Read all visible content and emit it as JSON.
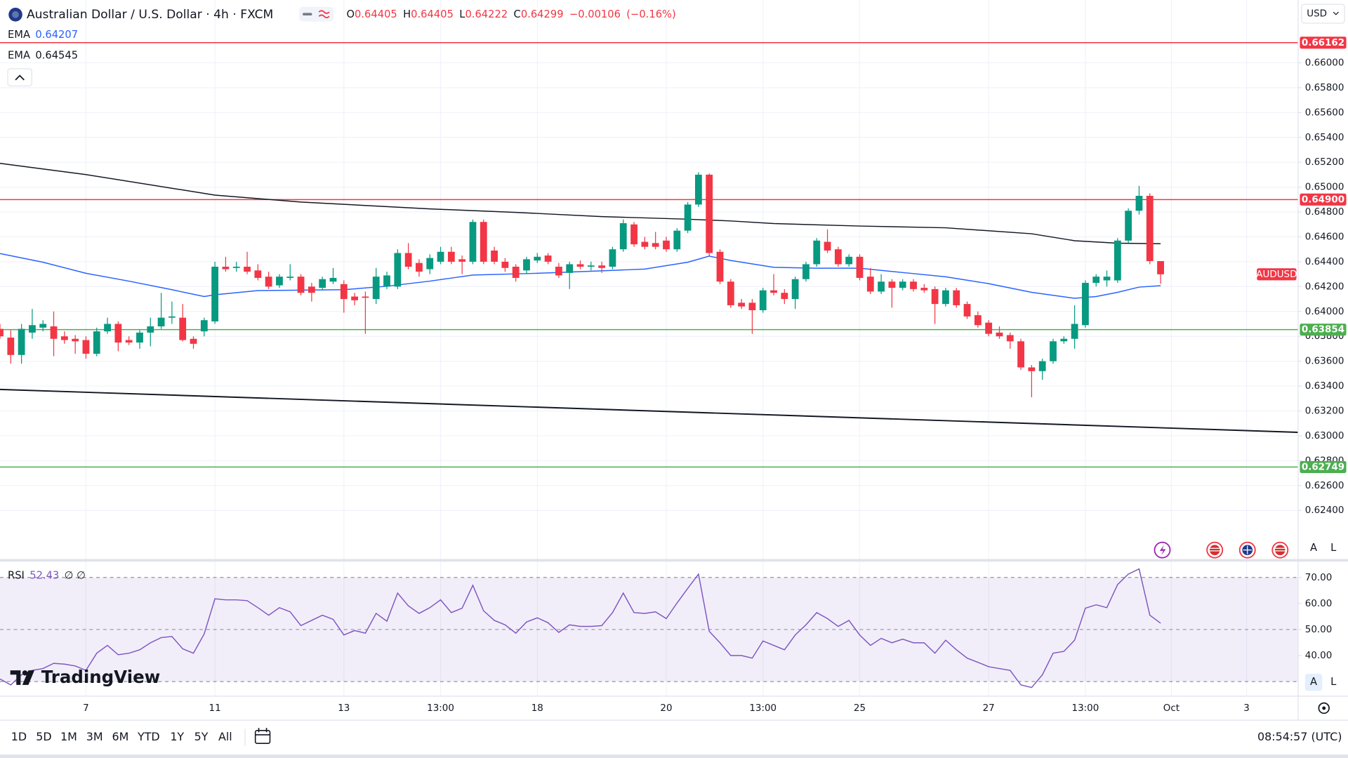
{
  "header": {
    "title": "Australian Dollar / U.S. Dollar · 4h · FXCM",
    "ohlc": [
      {
        "prefix": "O",
        "value": 0.64405
      },
      {
        "prefix": "H",
        "value": 0.64405
      },
      {
        "prefix": "L",
        "value": 0.64222
      },
      {
        "prefix": "C",
        "value": 0.64299
      }
    ],
    "change": {
      "value": -0.00106,
      "label": "−0.00106"
    },
    "change_pct": {
      "value": -0.16,
      "label": "(−0.16%)"
    }
  },
  "currency": "USD",
  "brand": "TradingView",
  "scale_buttons": [
    "A",
    "L"
  ],
  "toolbar": {
    "ranges": [
      "1D",
      "5D",
      "1M",
      "3M",
      "6M",
      "YTD",
      "1Y",
      "5Y",
      "All"
    ],
    "clock": "08:54:57 (UTC)"
  },
  "chart_data": {
    "type": "candlestick",
    "symbol": "AUDUSD",
    "up_color": "#089981",
    "down_color": "#f23645",
    "grid": true,
    "xlim": [
      0,
      120.8
    ],
    "ylim": [
      0.62185,
      0.66505
    ],
    "yticks": [
      {
        "value": 0.66,
        "label": "0.66000"
      },
      {
        "value": 0.658,
        "label": "0.65800"
      },
      {
        "value": 0.656,
        "label": "0.65600"
      },
      {
        "value": 0.654,
        "label": "0.65400"
      },
      {
        "value": 0.652,
        "label": "0.65200"
      },
      {
        "value": 0.65,
        "label": "0.65000"
      },
      {
        "value": 0.648,
        "label": "0.64800"
      },
      {
        "value": 0.646,
        "label": "0.64600"
      },
      {
        "value": 0.644,
        "label": "0.64400"
      },
      {
        "value": 0.642,
        "label": "0.64200"
      },
      {
        "value": 0.64,
        "label": "0.64000"
      },
      {
        "value": 0.638,
        "label": "0.63800"
      },
      {
        "value": 0.636,
        "label": "0.63600"
      },
      {
        "value": 0.634,
        "label": "0.63400"
      },
      {
        "value": 0.632,
        "label": "0.63200"
      },
      {
        "value": 0.63,
        "label": "0.63000"
      },
      {
        "value": 0.628,
        "label": "0.62800"
      },
      {
        "value": 0.626,
        "label": "0.62600"
      },
      {
        "value": 0.624,
        "label": "0.62400"
      }
    ],
    "x_labels": [
      "7",
      "11",
      "13",
      "13:00",
      "18",
      "20",
      "13:00",
      "25",
      "27",
      "13:00",
      "Oct",
      "3"
    ],
    "candles": [
      [
        0.6386,
        0.639,
        0.6378,
        0.638
      ],
      [
        0.6379,
        0.6385,
        0.6358,
        0.6365
      ],
      [
        0.6365,
        0.639,
        0.6358,
        0.6386
      ],
      [
        0.6383,
        0.6402,
        0.6378,
        0.6389
      ],
      [
        0.6387,
        0.6393,
        0.6384,
        0.639
      ],
      [
        0.6388,
        0.64,
        0.6364,
        0.6378
      ],
      [
        0.638,
        0.6384,
        0.6374,
        0.6377
      ],
      [
        0.6378,
        0.6381,
        0.6366,
        0.6376
      ],
      [
        0.6377,
        0.638,
        0.6362,
        0.6366
      ],
      [
        0.6366,
        0.6387,
        0.6364,
        0.6384
      ],
      [
        0.6384,
        0.6395,
        0.6382,
        0.639
      ],
      [
        0.639,
        0.6392,
        0.6368,
        0.6375
      ],
      [
        0.6377,
        0.638,
        0.6373,
        0.6375
      ],
      [
        0.6375,
        0.6385,
        0.637,
        0.6383
      ],
      [
        0.6383,
        0.6395,
        0.6372,
        0.6388
      ],
      [
        0.6388,
        0.6415,
        0.6386,
        0.6395
      ],
      [
        0.6395,
        0.6408,
        0.639,
        0.6396
      ],
      [
        0.6395,
        0.6406,
        0.6376,
        0.6377
      ],
      [
        0.6378,
        0.638,
        0.637,
        0.6374
      ],
      [
        0.6384,
        0.6395,
        0.638,
        0.6393
      ],
      [
        0.6392,
        0.644,
        0.639,
        0.6436
      ],
      [
        0.6436,
        0.6444,
        0.6432,
        0.6434
      ],
      [
        0.6435,
        0.644,
        0.6432,
        0.6436
      ],
      [
        0.6436,
        0.6448,
        0.643,
        0.6432
      ],
      [
        0.6433,
        0.6438,
        0.6425,
        0.6427
      ],
      [
        0.6428,
        0.6432,
        0.6418,
        0.642
      ],
      [
        0.6421,
        0.643,
        0.6419,
        0.6428
      ],
      [
        0.6427,
        0.6438,
        0.6425,
        0.6428
      ],
      [
        0.6428,
        0.643,
        0.6413,
        0.6415
      ],
      [
        0.642,
        0.6423,
        0.6408,
        0.6415
      ],
      [
        0.6419,
        0.6428,
        0.6417,
        0.6426
      ],
      [
        0.6424,
        0.6435,
        0.6422,
        0.6427
      ],
      [
        0.6422,
        0.6425,
        0.6399,
        0.641
      ],
      [
        0.6412,
        0.6415,
        0.6405,
        0.6409
      ],
      [
        0.6412,
        0.6416,
        0.6382,
        0.6411
      ],
      [
        0.641,
        0.6435,
        0.6406,
        0.6428
      ],
      [
        0.642,
        0.6432,
        0.6418,
        0.6429
      ],
      [
        0.642,
        0.645,
        0.6418,
        0.6447
      ],
      [
        0.6447,
        0.6455,
        0.6434,
        0.6436
      ],
      [
        0.6439,
        0.6442,
        0.6428,
        0.6432
      ],
      [
        0.6434,
        0.6446,
        0.643,
        0.6443
      ],
      [
        0.644,
        0.6452,
        0.6438,
        0.6448
      ],
      [
        0.6448,
        0.6452,
        0.6438,
        0.644
      ],
      [
        0.6442,
        0.6445,
        0.643,
        0.644
      ],
      [
        0.644,
        0.6474,
        0.6438,
        0.6472
      ],
      [
        0.6472,
        0.6474,
        0.6438,
        0.644
      ],
      [
        0.6449,
        0.6452,
        0.6438,
        0.644
      ],
      [
        0.644,
        0.6443,
        0.6432,
        0.6435
      ],
      [
        0.6436,
        0.6438,
        0.6424,
        0.6427
      ],
      [
        0.6433,
        0.6444,
        0.643,
        0.6442
      ],
      [
        0.6441,
        0.6447,
        0.6439,
        0.6444
      ],
      [
        0.6445,
        0.6447,
        0.6438,
        0.644
      ],
      [
        0.6436,
        0.6439,
        0.6427,
        0.6429
      ],
      [
        0.6431,
        0.644,
        0.6418,
        0.6438
      ],
      [
        0.6438,
        0.6441,
        0.6434,
        0.6436
      ],
      [
        0.6436,
        0.644,
        0.6433,
        0.6437
      ],
      [
        0.6437,
        0.644,
        0.6431,
        0.6435
      ],
      [
        0.6436,
        0.6452,
        0.6434,
        0.645
      ],
      [
        0.645,
        0.6474,
        0.6448,
        0.6471
      ],
      [
        0.647,
        0.6472,
        0.6452,
        0.6454
      ],
      [
        0.6456,
        0.646,
        0.645,
        0.6452
      ],
      [
        0.6455,
        0.6464,
        0.645,
        0.6452
      ],
      [
        0.6457,
        0.646,
        0.6448,
        0.645
      ],
      [
        0.645,
        0.6467,
        0.6448,
        0.6465
      ],
      [
        0.6465,
        0.6488,
        0.6463,
        0.6486
      ],
      [
        0.6486,
        0.6512,
        0.6484,
        0.651
      ],
      [
        0.651,
        0.6511,
        0.6444,
        0.6447
      ],
      [
        0.6448,
        0.645,
        0.6422,
        0.6424
      ],
      [
        0.6424,
        0.6426,
        0.6403,
        0.6405
      ],
      [
        0.6407,
        0.641,
        0.6402,
        0.6404
      ],
      [
        0.6407,
        0.641,
        0.6382,
        0.6401
      ],
      [
        0.6401,
        0.6419,
        0.6399,
        0.6417
      ],
      [
        0.6417,
        0.643,
        0.6413,
        0.6415
      ],
      [
        0.6415,
        0.6418,
        0.6406,
        0.641
      ],
      [
        0.641,
        0.6428,
        0.6402,
        0.6426
      ],
      [
        0.6426,
        0.644,
        0.6424,
        0.6438
      ],
      [
        0.6438,
        0.6459,
        0.6436,
        0.6457
      ],
      [
        0.6456,
        0.6466,
        0.6447,
        0.6449
      ],
      [
        0.645,
        0.6452,
        0.6436,
        0.6438
      ],
      [
        0.6438,
        0.6446,
        0.6436,
        0.6444
      ],
      [
        0.6444,
        0.6446,
        0.6425,
        0.6427
      ],
      [
        0.6428,
        0.6435,
        0.6414,
        0.6416
      ],
      [
        0.6416,
        0.643,
        0.6414,
        0.6424
      ],
      [
        0.6424,
        0.6426,
        0.6403,
        0.6419
      ],
      [
        0.6419,
        0.6426,
        0.6417,
        0.6424
      ],
      [
        0.6424,
        0.6426,
        0.6416,
        0.6418
      ],
      [
        0.6419,
        0.6422,
        0.6415,
        0.6417
      ],
      [
        0.6418,
        0.642,
        0.639,
        0.6406
      ],
      [
        0.6406,
        0.6419,
        0.6404,
        0.6417
      ],
      [
        0.6417,
        0.6419,
        0.6403,
        0.6405
      ],
      [
        0.6406,
        0.6408,
        0.6394,
        0.6396
      ],
      [
        0.6397,
        0.64,
        0.6387,
        0.6389
      ],
      [
        0.6391,
        0.6393,
        0.638,
        0.6382
      ],
      [
        0.6383,
        0.6388,
        0.6378,
        0.638
      ],
      [
        0.6381,
        0.6383,
        0.637,
        0.6376
      ],
      [
        0.6376,
        0.6378,
        0.6353,
        0.6355
      ],
      [
        0.6355,
        0.6357,
        0.6331,
        0.6352
      ],
      [
        0.6352,
        0.6362,
        0.6345,
        0.636
      ],
      [
        0.636,
        0.6378,
        0.6358,
        0.6376
      ],
      [
        0.6376,
        0.638,
        0.6374,
        0.6378
      ],
      [
        0.6378,
        0.6405,
        0.637,
        0.639
      ],
      [
        0.6389,
        0.6425,
        0.6387,
        0.6423
      ],
      [
        0.6423,
        0.643,
        0.642,
        0.6428
      ],
      [
        0.6425,
        0.6433,
        0.642,
        0.6428
      ],
      [
        0.6425,
        0.6459,
        0.6423,
        0.6457
      ],
      [
        0.6457,
        0.6483,
        0.6455,
        0.6481
      ],
      [
        0.6481,
        0.6501,
        0.6478,
        0.6493
      ],
      [
        0.6493,
        0.6495,
        0.6438,
        0.64405
      ],
      [
        0.64405,
        0.64405,
        0.64222,
        0.64299
      ]
    ],
    "indicators": [
      {
        "name": "EMA",
        "value": 0.64207,
        "color": "#2962ff",
        "x": [
          0,
          4,
          8,
          12,
          16,
          19,
          20,
          24,
          32,
          36,
          40,
          44,
          50,
          56,
          60,
          64,
          66,
          68,
          72,
          76,
          80,
          84,
          88,
          92,
          96,
          100,
          102,
          104,
          106,
          108
        ],
        "values": [
          0.64466,
          0.64396,
          0.64307,
          0.64244,
          0.64175,
          0.6412,
          0.64134,
          0.64168,
          0.64175,
          0.64203,
          0.64244,
          0.64293,
          0.64307,
          0.64327,
          0.64341,
          0.64396,
          0.64445,
          0.6441,
          0.64355,
          0.64348,
          0.64348,
          0.64313,
          0.64279,
          0.64224,
          0.64154,
          0.64106,
          0.6412,
          0.64154,
          0.64196,
          0.64207
        ]
      },
      {
        "name": "EMA",
        "value": 0.64545,
        "color": "#131722",
        "x": [
          0,
          8,
          20,
          28,
          40,
          48,
          56,
          64,
          68,
          72,
          80,
          88,
          96,
          100,
          104,
          108
        ],
        "values": [
          0.65191,
          0.65101,
          0.64936,
          0.6488,
          0.64825,
          0.64797,
          0.64763,
          0.64742,
          0.64728,
          0.64707,
          0.64687,
          0.64673,
          0.64625,
          0.64569,
          0.64549,
          0.64545
        ]
      }
    ],
    "trendline": {
      "color": "#131722",
      "x": [
        0,
        120.8
      ],
      "values": [
        0.63373,
        0.63028
      ]
    },
    "levels": [
      {
        "value": 0.66162,
        "color": "#f23645"
      },
      {
        "value": 0.649,
        "label": "0.64900",
        "color": "#f23645"
      },
      {
        "value": 0.63854,
        "color": "#4caf50"
      },
      {
        "value": 0.62749,
        "color": "#4caf50"
      }
    ]
  },
  "rsi": {
    "type": "line",
    "name": "RSI",
    "value": 52.43,
    "extra": "∅ ∅",
    "color": "#7e57c2",
    "ylim": [
      24.4,
      75.6
    ],
    "yticks": [
      {
        "value": 70,
        "label": "70.00"
      },
      {
        "value": 60,
        "label": "60.00"
      },
      {
        "value": 50,
        "label": "50.00"
      },
      {
        "value": 40,
        "label": "40.00"
      }
    ],
    "band": [
      30,
      70
    ],
    "midline": 50,
    "values": [
      31.0,
      28.7,
      32.6,
      34.3,
      35.0,
      37.0,
      36.7,
      36.0,
      34.3,
      40.9,
      43.9,
      40.3,
      40.9,
      42.2,
      44.9,
      46.9,
      47.3,
      42.6,
      40.9,
      48.3,
      61.8,
      61.4,
      61.4,
      61.1,
      58.4,
      55.5,
      58.4,
      56.8,
      51.5,
      53.5,
      55.5,
      53.9,
      47.9,
      49.6,
      48.6,
      56.2,
      53.2,
      64.0,
      59.1,
      56.2,
      58.4,
      61.4,
      56.5,
      58.2,
      67.0,
      57.2,
      53.5,
      51.8,
      48.6,
      52.9,
      54.5,
      52.6,
      48.9,
      51.8,
      51.2,
      51.2,
      51.5,
      56.5,
      64.0,
      56.5,
      56.2,
      56.8,
      54.2,
      60.2,
      65.8,
      71.3,
      49.3,
      44.9,
      40.0,
      40.0,
      39.0,
      45.6,
      43.9,
      42.2,
      47.9,
      51.8,
      56.5,
      54.2,
      51.2,
      53.5,
      47.9,
      43.9,
      46.6,
      44.9,
      46.3,
      44.9,
      44.9,
      40.9,
      45.9,
      42.2,
      39.0,
      37.4,
      35.7,
      35.0,
      34.3,
      28.7,
      27.7,
      32.6,
      40.9,
      41.6,
      45.9,
      58.2,
      59.5,
      58.4,
      67.3,
      71.3,
      73.3,
      55.5,
      52.43
    ]
  }
}
